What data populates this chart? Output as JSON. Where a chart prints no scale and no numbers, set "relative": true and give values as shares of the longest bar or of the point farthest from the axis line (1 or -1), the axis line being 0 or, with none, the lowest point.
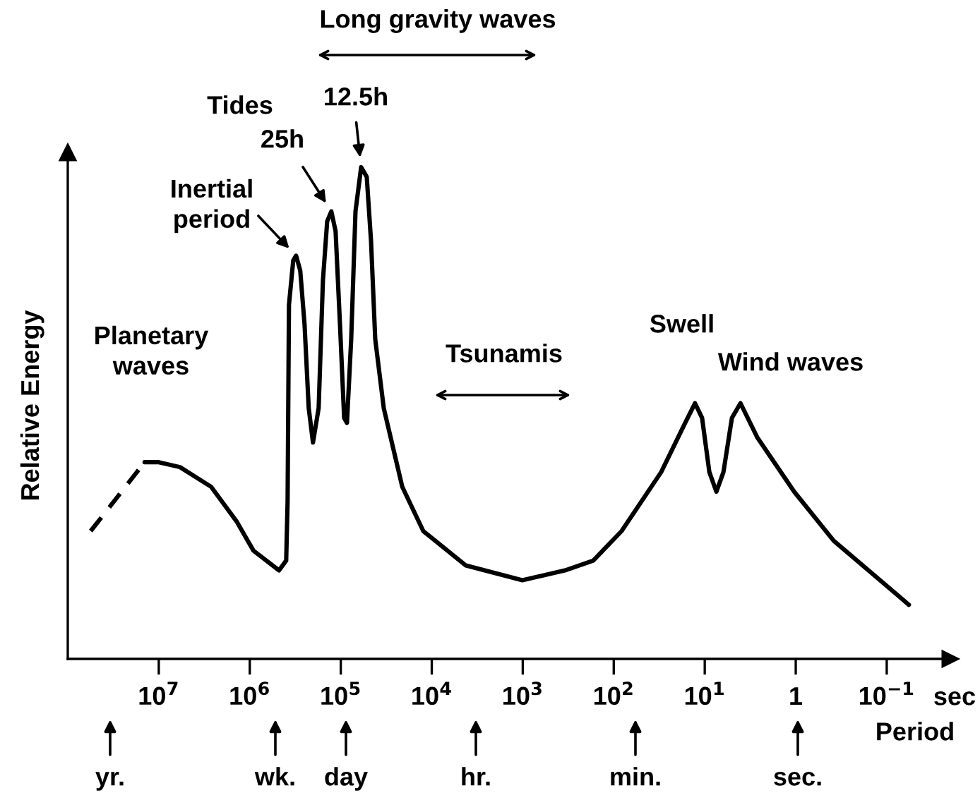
{
  "chart_data": {
    "type": "line",
    "relative": true,
    "log": "x",
    "ylabel": "Relative Energy",
    "xlabel": "Period",
    "xlim": [
      100000000,
      0.02
    ],
    "xticks": [
      {
        "value": 10000000,
        "label": "10$^{7}$"
      },
      {
        "value": 1000000,
        "label": "10$^{6}$"
      },
      {
        "value": 100000,
        "label": "10$^{5}$"
      },
      {
        "value": 10000,
        "label": "10$^{4}$"
      },
      {
        "value": 1000,
        "label": "10$^{3}$"
      },
      {
        "value": 100,
        "label": "10$^{2}$"
      },
      {
        "value": 10,
        "label": "10$^{1}$"
      },
      1,
      {
        "value": 0.1,
        "label": "10$^{−1}$"
      }
    ],
    "series": [
      {
        "color": "#000000",
        "line_style": "dashed",
        "x": [
          56000000,
          14300000
        ],
        "values": [
          0.26,
          0.4
        ]
      },
      {
        "color": "#000000",
        "line_style": "solid",
        "x": [
          14300000,
          10000000,
          5850000,
          2660000,
          1400000,
          910000,
          477000,
          398000,
          384000,
          371000,
          333000,
          310000,
          279000,
          250000,
          225000,
          202000,
          175000,
          157000,
          141000,
          127000,
          114000,
          102000,
          91800,
          85500,
          76800,
          68900,
          59700,
          51800,
          46500,
          41800,
          33700,
          21100,
          12400,
          4220,
          1010,
          344,
          168,
          82,
          30.1,
          16.4,
          12.8,
          10.7,
          8.9,
          7.45,
          6.23,
          5.03,
          4.05,
          2.64,
          1.04,
          0.382,
          0.0571
        ],
        "values": [
          0.4,
          0.4,
          0.39,
          0.35,
          0.28,
          0.22,
          0.18,
          0.2,
          0.32,
          0.72,
          0.81,
          0.82,
          0.79,
          0.68,
          0.51,
          0.44,
          0.51,
          0.77,
          0.89,
          0.91,
          0.87,
          0.68,
          0.49,
          0.48,
          0.65,
          0.91,
          1.0,
          0.98,
          0.85,
          0.65,
          0.51,
          0.35,
          0.26,
          0.19,
          0.16,
          0.18,
          0.2,
          0.26,
          0.38,
          0.48,
          0.52,
          0.49,
          0.38,
          0.34,
          0.38,
          0.49,
          0.52,
          0.45,
          0.34,
          0.24,
          0.11
        ]
      }
    ],
    "annotations": [
      "Long gravity waves",
      "Tides",
      {
        "text": "12.5h",
        "x": 59700,
        "y": 1.0
      },
      {
        "text": "25h",
        "x": 127000,
        "y": 0.91
      },
      {
        "text": "Inertial\nperiod",
        "x": 310000,
        "y": 0.82
      },
      "Planetary\nwaves",
      "Tsunamis",
      "Swell",
      "Wind waves",
      "sec",
      "yr.",
      "wk.",
      "day",
      "hr.",
      "min.",
      "sec."
    ]
  }
}
